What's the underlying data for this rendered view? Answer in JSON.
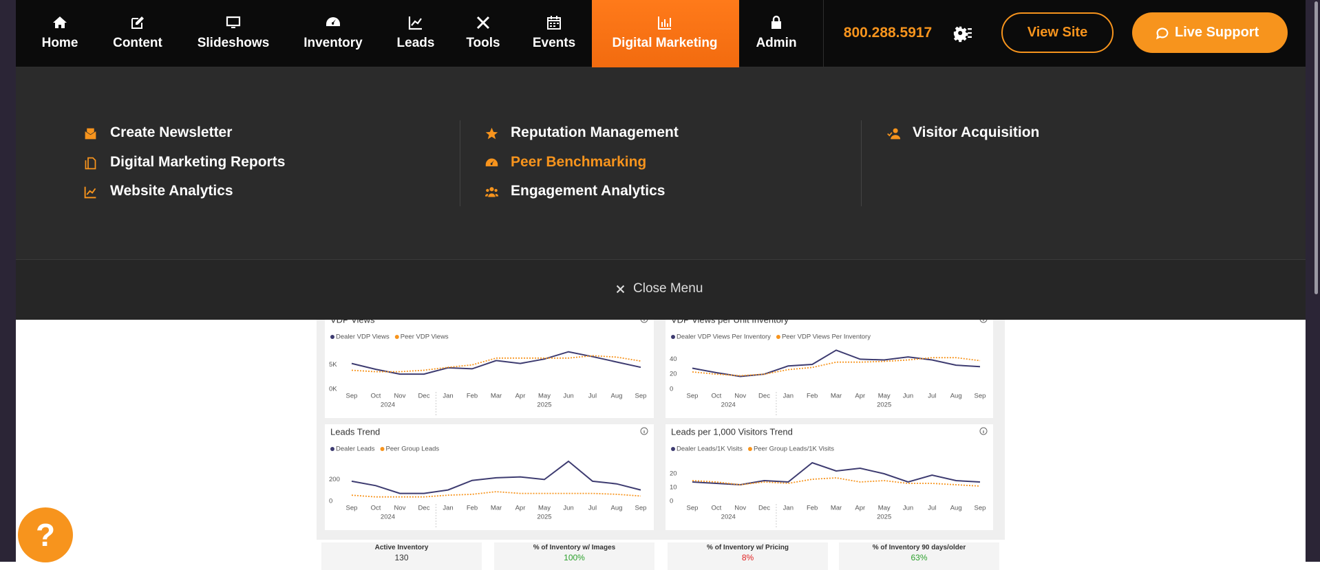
{
  "nav": {
    "items": [
      {
        "label": "Home"
      },
      {
        "label": "Content"
      },
      {
        "label": "Slideshows"
      },
      {
        "label": "Inventory"
      },
      {
        "label": "Leads"
      },
      {
        "label": "Tools"
      },
      {
        "label": "Events"
      },
      {
        "label": "Digital Marketing",
        "active": true
      },
      {
        "label": "Admin"
      }
    ],
    "phone": "800.288.5917",
    "view_site": "View Site",
    "live_support": "Live Support"
  },
  "menu": {
    "columns": [
      [
        {
          "label": "Create Newsletter"
        },
        {
          "label": "Digital Marketing Reports"
        },
        {
          "label": "Website Analytics"
        }
      ],
      [
        {
          "label": "Reputation Management"
        },
        {
          "label": "Peer Benchmarking",
          "highlight": true
        },
        {
          "label": "Engagement Analytics"
        }
      ],
      [
        {
          "label": "Visitor Acquisition"
        }
      ]
    ],
    "close": "Close Menu"
  },
  "dashboard": {
    "charts": [
      {
        "type": "line",
        "title": "VDP Views",
        "categories": [
          "Sep",
          "Oct",
          "Nov",
          "Dec",
          "Jan",
          "Feb",
          "Mar",
          "Apr",
          "May",
          "Jun",
          "Jul",
          "Aug",
          "Sep"
        ],
        "years": [
          "2024",
          "2025"
        ],
        "ylim": [
          0,
          8500
        ],
        "yticks": [
          {
            "value": 0,
            "label": "0K"
          },
          {
            "value": 5000,
            "label": "5K"
          }
        ],
        "series": [
          {
            "name": "Dealer VDP Views",
            "color": "#3d3b70",
            "values": [
              5300,
              4100,
              3100,
              3100,
              4400,
              4200,
              5900,
              5300,
              6200,
              7700,
              6700,
              5600,
              4500
            ]
          },
          {
            "name": "Peer VDP Views",
            "color": "#f7941d",
            "dashed": true,
            "values": [
              3900,
              3600,
              3600,
              3900,
              4500,
              5000,
              6400,
              6400,
              6400,
              6400,
              6900,
              6600,
              5800
            ]
          }
        ]
      },
      {
        "type": "line",
        "title": "VDP Views per Unit Inventory",
        "categories": [
          "Sep",
          "Oct",
          "Nov",
          "Dec",
          "Jan",
          "Feb",
          "Mar",
          "Apr",
          "May",
          "Jun",
          "Jul",
          "Aug",
          "Sep"
        ],
        "years": [
          "2024",
          "2025"
        ],
        "ylim": [
          0,
          55
        ],
        "yticks": [
          0,
          20,
          40
        ],
        "series": [
          {
            "name": "Dealer VDP Views Per Inventory",
            "color": "#3d3b70",
            "values": [
              28,
              22,
              17,
              20,
              31,
              33,
              52,
              40,
              39,
              43,
              39,
              32,
              30
            ]
          },
          {
            "name": "Peer VDP Views Per Inventory",
            "color": "#f7941d",
            "dashed": true,
            "values": [
              23,
              20,
              18,
              20,
              26,
              29,
              36,
              36,
              37,
              39,
              42,
              42,
              38
            ]
          }
        ]
      },
      {
        "type": "line",
        "title": "Leads Trend",
        "categories": [
          "Sep",
          "Oct",
          "Nov",
          "Dec",
          "Jan",
          "Feb",
          "Mar",
          "Apr",
          "May",
          "Jun",
          "Jul",
          "Aug",
          "Sep"
        ],
        "years": [
          "2024",
          "2025"
        ],
        "ylim": [
          0,
          380
        ],
        "yticks": [
          0,
          200
        ],
        "series": [
          {
            "name": "Dealer Leads",
            "color": "#3d3b70",
            "values": [
              184,
              144,
              72,
              72,
              104,
              192,
              216,
              224,
              200,
              368,
              184,
              160,
              104
            ]
          },
          {
            "name": "Peer Group Leads",
            "color": "#f7941d",
            "dashed": true,
            "values": [
              56,
              40,
              40,
              40,
              56,
              64,
              88,
              72,
              72,
              72,
              72,
              64,
              48
            ]
          }
        ]
      },
      {
        "type": "line",
        "title": "Leads per 1,000 Visitors Trend",
        "categories": [
          "Sep",
          "Oct",
          "Nov",
          "Dec",
          "Jan",
          "Feb",
          "Mar",
          "Apr",
          "May",
          "Jun",
          "Jul",
          "Aug",
          "Sep"
        ],
        "years": [
          "2024",
          "2025"
        ],
        "ylim": [
          0,
          30
        ],
        "yticks": [
          0,
          10,
          20
        ],
        "series": [
          {
            "name": "Dealer Leads/1K Visits",
            "color": "#3d3b70",
            "values": [
              14,
              13,
              12,
              15,
              14,
              28,
              22,
              24,
              20,
              14,
              19,
              15,
              14
            ]
          },
          {
            "name": "Peer Group Leads/1K Visits",
            "color": "#f7941d",
            "dashed": true,
            "values": [
              15,
              14,
              12,
              14,
              13,
              16,
              17,
              14,
              15,
              13,
              13,
              12,
              11
            ]
          }
        ]
      }
    ],
    "kpis": [
      {
        "label": "Active Inventory",
        "value": "130",
        "color": "#333333"
      },
      {
        "label": "% of Inventory w/ Images",
        "value": "100%",
        "color": "#2ca02c"
      },
      {
        "label": "% of Inventory w/ Pricing",
        "value": "8%",
        "color": "#e02020"
      },
      {
        "label": "% of Inventory 90 days/older",
        "value": "63%",
        "color": "#2ca02c"
      }
    ],
    "help": "?"
  }
}
